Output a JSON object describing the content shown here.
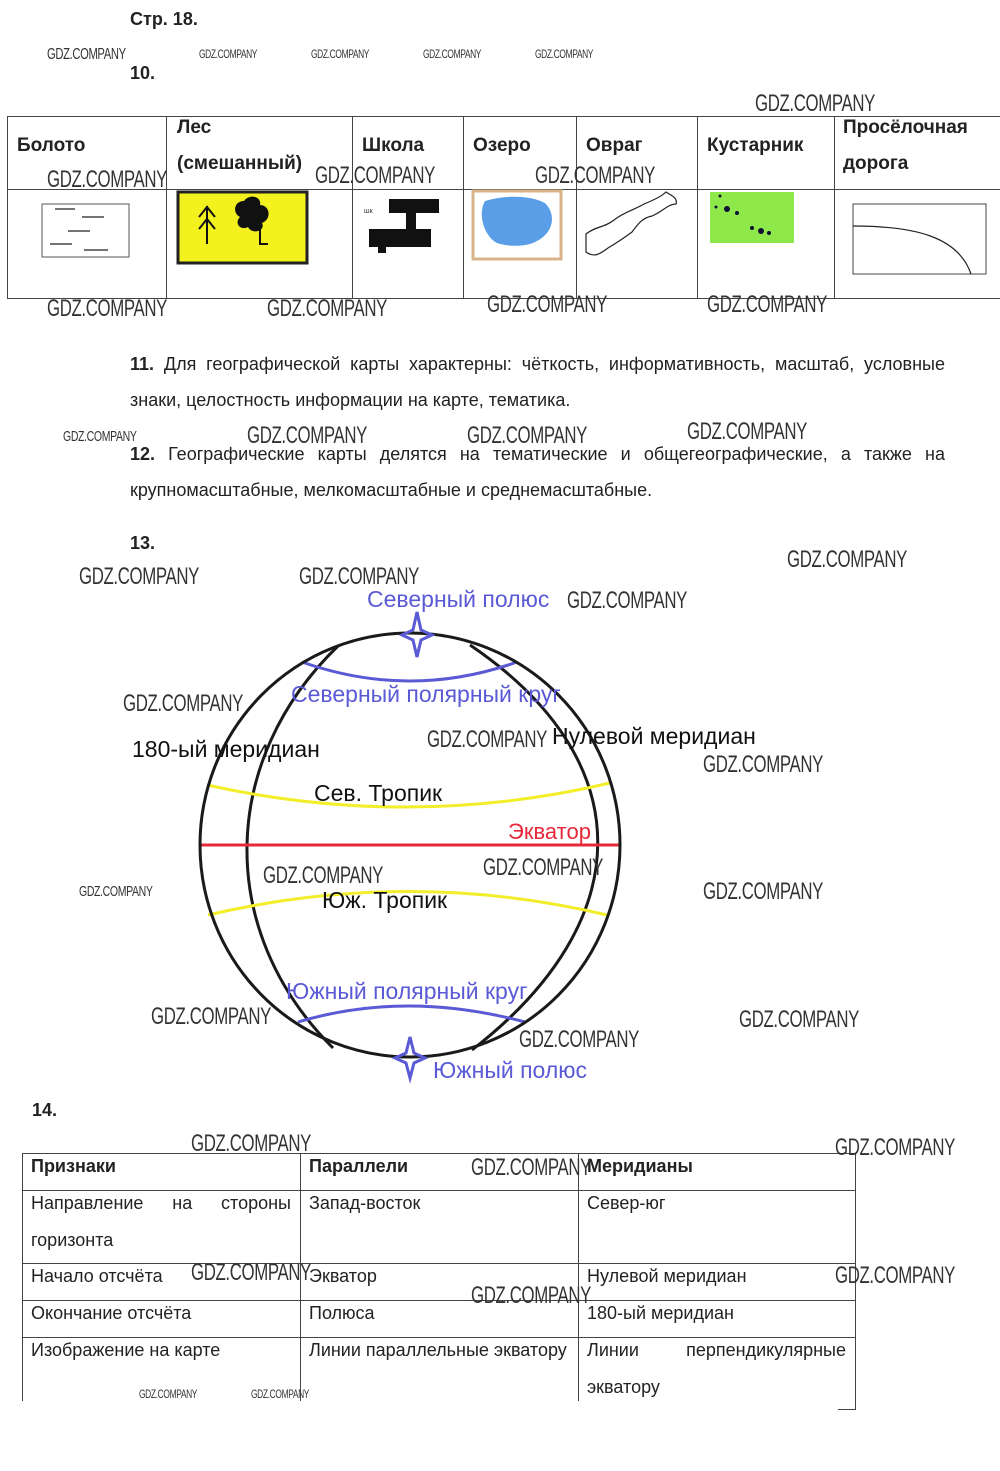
{
  "page_label": "Стр. 18.",
  "watermark": "GDZ.COMPANY",
  "task10": {
    "number": "10.",
    "headers": [
      "Болото",
      "Лес (смешанный)",
      "Школа",
      "Озеро",
      "Овраг",
      "Кустарник",
      "Просёлочная дорога"
    ],
    "school_sign_text": "шк",
    "colors": {
      "forest": "#f4f21e",
      "lake": "#5b9ee8",
      "shrub": "#8fe84a"
    }
  },
  "task11": {
    "number": "11.",
    "text": "Для географической карты характерны: чёткость, информативность, масштаб, условные знаки, целостность информации на карте, тематика."
  },
  "task12": {
    "number": "12.",
    "text": "Географические карты делятся на тематические и общегеографические, а также на крупномасштабные, мелкомасштабные и среднемасштабные."
  },
  "task13": {
    "number": "13.",
    "labels": {
      "north_pole": "Северный полюс",
      "arctic_circle": "Северный полярный круг",
      "meridian_180": "180-ый меридиан",
      "prime_meridian": "Нулевой меридиан",
      "tropic_north": "Сев. Тропик",
      "equator": "Экватор",
      "tropic_south": "Юж. Тропик",
      "antarctic_circle": "Южный полярный круг",
      "south_pole": "Южный полюс"
    },
    "colors": {
      "polar": "#5a5ad6",
      "tropic": "#f2ee2a",
      "equator": "#e8283a",
      "outline": "#1a1a1a"
    }
  },
  "task14": {
    "number": "14.",
    "headers": [
      "Признаки",
      "Параллели",
      "Меридианы"
    ],
    "rows": [
      [
        "Направление на стороны горизонта",
        "Запад-восток",
        "Север-юг"
      ],
      [
        "Начало отсчёта",
        "Экватор",
        "Нулевой меридиан"
      ],
      [
        "Окончание отсчёта",
        "Полюса",
        "180-ый меридиан"
      ],
      [
        "Изображение на карте",
        "Линии параллельные экватору",
        "Линии перпендикулярные экватору"
      ]
    ]
  }
}
